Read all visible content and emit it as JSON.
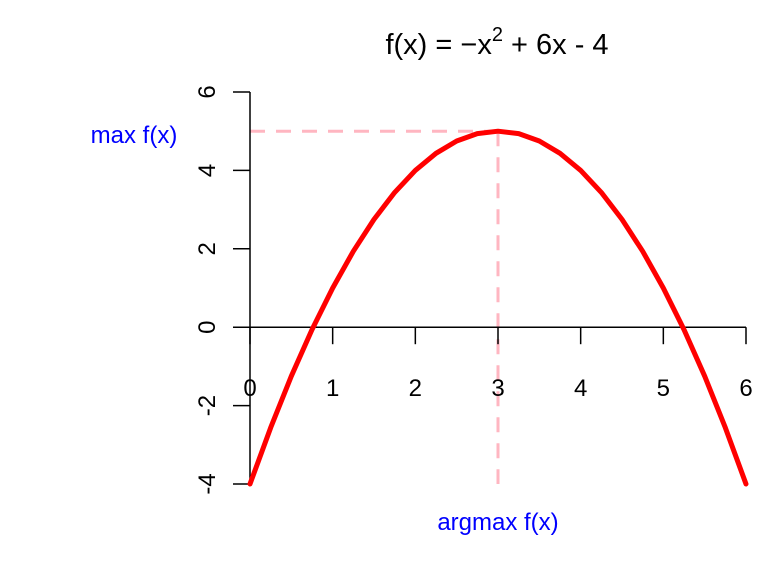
{
  "chart_data": {
    "type": "line",
    "title": {
      "prefix": "f(x) = ",
      "minus": "−",
      "var": "x",
      "exponent": "2",
      "suffix": " + 6x - 4"
    },
    "xlim": [
      0,
      6
    ],
    "ylim": [
      -4,
      6
    ],
    "x_ticks": [
      0,
      1,
      2,
      3,
      4,
      5,
      6
    ],
    "y_ticks": [
      -4,
      -2,
      0,
      2,
      4,
      6
    ],
    "x_tick_labels": [
      "0",
      "1",
      "2",
      "3",
      "4",
      "5",
      "6"
    ],
    "y_tick_labels": [
      "-4",
      "-2",
      "0",
      "2",
      "4",
      "6"
    ],
    "series": [
      {
        "color": "#ff0000",
        "x": [
          0,
          0.25,
          0.5,
          0.75,
          1,
          1.25,
          1.5,
          1.75,
          2,
          2.25,
          2.5,
          2.75,
          3,
          3.25,
          3.5,
          3.75,
          4,
          4.25,
          4.5,
          4.75,
          5,
          5.25,
          5.5,
          5.75,
          6
        ],
        "y": [
          -4,
          -2.5625,
          -1.25,
          -0.0625,
          1,
          1.9375,
          2.75,
          3.4375,
          4,
          4.4375,
          4.75,
          4.9375,
          5,
          4.9375,
          4.75,
          4.4375,
          4,
          3.4375,
          2.75,
          1.9375,
          1,
          -0.0625,
          -1.25,
          -2.5625,
          -4
        ]
      }
    ],
    "maximum": {
      "x": 3,
      "y": 5
    },
    "annotations": {
      "max_label": "max f(x)",
      "argmax_label": "argmax f(x)",
      "label_color": "#0000ff",
      "guide_color": "#ffb6c1"
    }
  }
}
